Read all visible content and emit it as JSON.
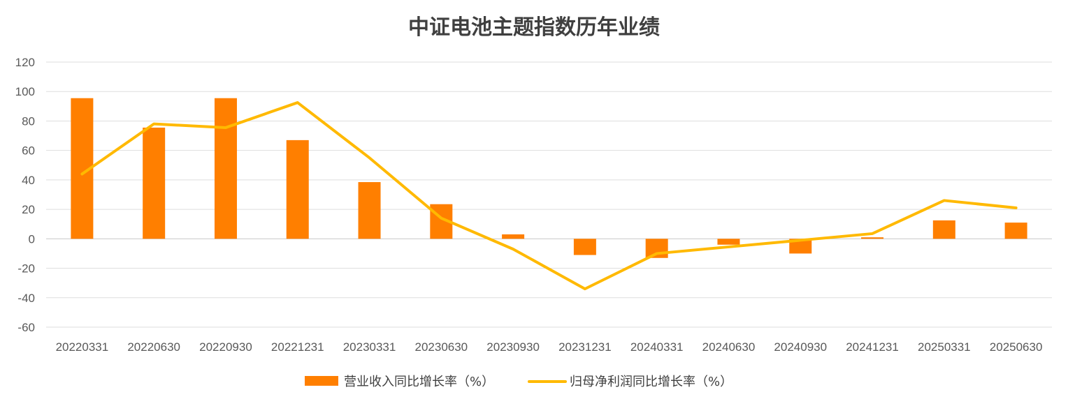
{
  "chart_data": {
    "type": "bar",
    "title": "中证电池主题指数历年业绩",
    "categories": [
      "20220331",
      "20220630",
      "20220930",
      "20221231",
      "20230331",
      "20230630",
      "20230930",
      "20231231",
      "20240331",
      "20240630",
      "20240930",
      "20241231",
      "20250331",
      "20250630"
    ],
    "ylim": [
      -60,
      120
    ],
    "yticks": [
      120,
      100,
      80,
      60,
      40,
      20,
      0,
      -20,
      -40,
      -60
    ],
    "grid": true,
    "legend_position": "bottom",
    "series": [
      {
        "name": "营业收入同比增长率（%）",
        "kind": "bar",
        "color": "#ff7f00",
        "values": [
          95.5,
          75.5,
          95.5,
          67,
          38.5,
          23.5,
          3,
          -11,
          -13,
          -4,
          -10,
          1,
          12.5,
          11
        ]
      },
      {
        "name": "归母净利润同比增长率（%）",
        "kind": "line",
        "color": "#ffb900",
        "values": [
          44,
          78,
          75.5,
          92.5,
          55,
          14,
          -7,
          -34,
          -10,
          -5.5,
          -1,
          3.5,
          26,
          21
        ]
      }
    ]
  }
}
